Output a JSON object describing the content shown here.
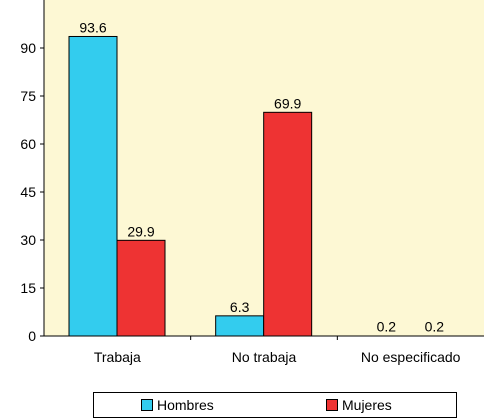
{
  "chart_data": {
    "type": "bar",
    "categories": [
      "Trabaja",
      "No trabaja",
      "No especificado"
    ],
    "series": [
      {
        "name": "Hombres",
        "values": [
          93.6,
          6.3,
          0.2
        ],
        "color": "#33ccee"
      },
      {
        "name": "Mujeres",
        "values": [
          29.9,
          69.9,
          0.2
        ],
        "color": "#ee3333"
      }
    ],
    "data_labels": [
      [
        "93.6",
        "6.3",
        "0.2"
      ],
      [
        "29.9",
        "69.9",
        "0.2"
      ]
    ],
    "ylim": [
      0,
      105
    ],
    "yticks": [
      "0",
      "15",
      "30",
      "45",
      "60",
      "75",
      "90"
    ],
    "ytick_values": [
      0,
      15,
      30,
      45,
      60,
      75,
      90
    ],
    "legend_position": "bottom",
    "grid": false,
    "plot_background": "#fdf8d4"
  }
}
